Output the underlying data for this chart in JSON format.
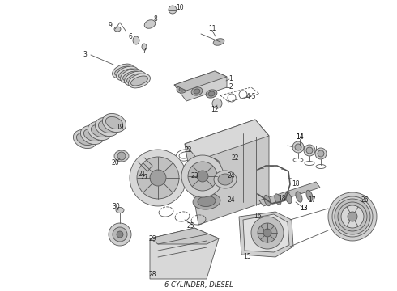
{
  "footer_text": "6 CYLINDER, DIESEL",
  "background_color": "#ffffff",
  "line_color": "#555555",
  "text_color": "#222222",
  "fig_width": 4.9,
  "fig_height": 3.6,
  "dpi": 100
}
